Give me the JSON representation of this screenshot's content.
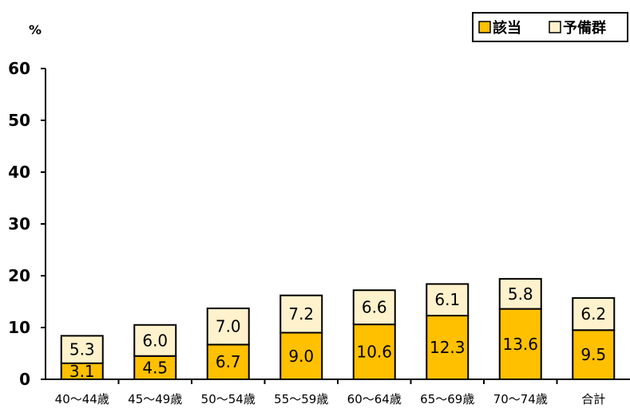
{
  "chart_data": {
    "type": "bar",
    "stacked": true,
    "unit_label": "%",
    "categories": [
      "40～44歳",
      "45～49歳",
      "50～54歳",
      "55～59歳",
      "60～64歳",
      "65～69歳",
      "70～74歳",
      "合計"
    ],
    "series": [
      {
        "name": "該当",
        "color": "#FFC000",
        "values": [
          3.1,
          4.5,
          6.7,
          9.0,
          10.6,
          12.3,
          13.6,
          9.5
        ]
      },
      {
        "name": "予備群",
        "color": "#FFF2CC",
        "values": [
          5.3,
          6.0,
          7.0,
          7.2,
          6.6,
          6.1,
          5.8,
          6.2
        ]
      }
    ],
    "ylim": [
      0,
      60
    ],
    "yticks": [
      0,
      10,
      20,
      30,
      40,
      50,
      60
    ],
    "legend_position": "top-right",
    "grid": false
  }
}
